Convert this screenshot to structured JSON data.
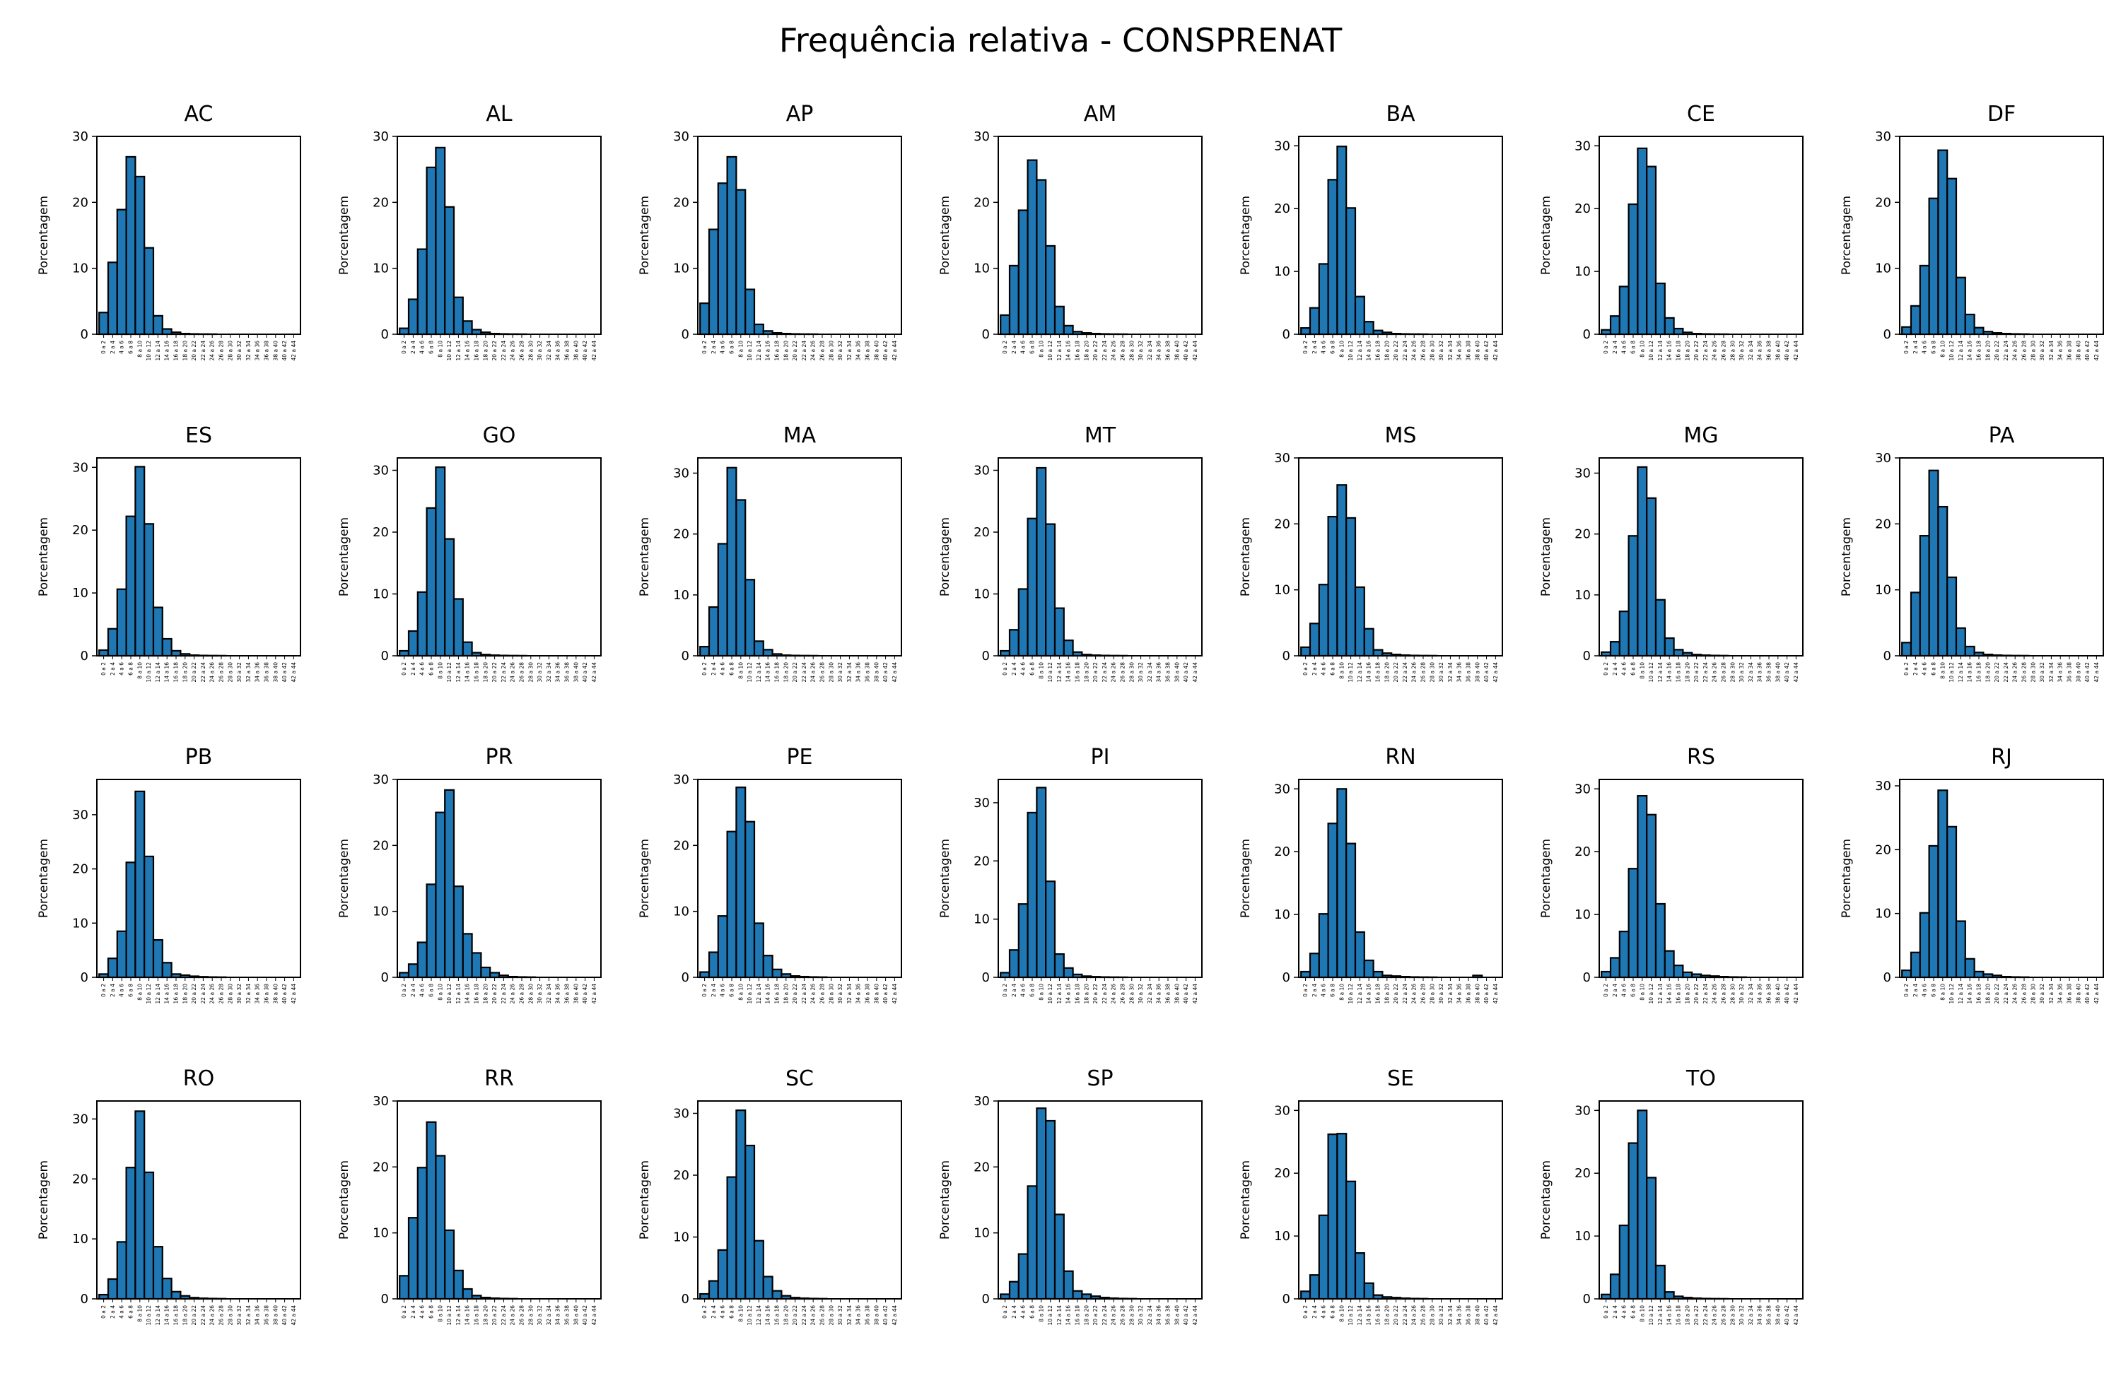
{
  "figure_title": "Frequência relativa - CONSPRENAT",
  "chart_data": {
    "type": "bar",
    "bin_labels": [
      "0 a 2",
      "2 a 4",
      "4 a 6",
      "6 a 8",
      "8 a 10",
      "10 a 12",
      "12 a 14",
      "14 a 16",
      "16 a 18",
      "18 a 20",
      "20 a 22",
      "22 a 24",
      "24 a 26",
      "26 a 28",
      "28 a 30",
      "30 a 32",
      "32 a 34",
      "34 a 36",
      "36 a 38",
      "38 a 40",
      "40 a 42",
      "42 a 44"
    ],
    "ylabel": "Porcentagem",
    "bar_color": "#1f77b4",
    "edge_color": "#000000",
    "grid": false,
    "panels": [
      {
        "title": "AC",
        "ylim": [
          0,
          30
        ],
        "yticks": [
          0,
          10,
          20,
          30
        ],
        "values": [
          3.3,
          10.9,
          18.9,
          26.9,
          23.9,
          13.1,
          2.8,
          0.8,
          0.3,
          0.1,
          0.05,
          0.03,
          0.02,
          0,
          0,
          0,
          0,
          0,
          0,
          0,
          0,
          0
        ]
      },
      {
        "title": "AL",
        "ylim": [
          0,
          30
        ],
        "yticks": [
          0,
          10,
          20,
          30
        ],
        "values": [
          0.9,
          5.3,
          12.9,
          25.3,
          28.3,
          19.3,
          5.6,
          2.0,
          0.7,
          0.3,
          0.1,
          0.05,
          0.03,
          0.02,
          0,
          0,
          0,
          0,
          0,
          0,
          0,
          0
        ]
      },
      {
        "title": "AP",
        "ylim": [
          0,
          30
        ],
        "yticks": [
          0,
          10,
          20,
          30
        ],
        "values": [
          4.7,
          15.9,
          22.9,
          26.9,
          21.9,
          6.8,
          1.5,
          0.5,
          0.2,
          0.1,
          0.05,
          0.03,
          0.02,
          0,
          0,
          0,
          0,
          0,
          0,
          0,
          0,
          0
        ]
      },
      {
        "title": "AM",
        "ylim": [
          0,
          30
        ],
        "yticks": [
          0,
          10,
          20,
          30
        ],
        "values": [
          2.9,
          10.4,
          18.8,
          26.4,
          23.4,
          13.4,
          4.2,
          1.3,
          0.4,
          0.2,
          0.1,
          0.05,
          0.03,
          0.02,
          0,
          0,
          0,
          0,
          0,
          0,
          0,
          0
        ]
      },
      {
        "title": "BA",
        "ylim": [
          0,
          31.5
        ],
        "yticks": [
          0,
          10,
          20,
          30
        ],
        "values": [
          1.0,
          4.2,
          11.2,
          24.6,
          29.9,
          20.1,
          6.0,
          2.0,
          0.6,
          0.3,
          0.1,
          0.05,
          0.03,
          0.02,
          0,
          0,
          0,
          0,
          0,
          0,
          0,
          0
        ]
      },
      {
        "title": "CE",
        "ylim": [
          0,
          31.5
        ],
        "yticks": [
          0,
          10,
          20,
          30
        ],
        "values": [
          0.7,
          2.9,
          7.6,
          20.7,
          29.6,
          26.7,
          8.1,
          2.6,
          0.9,
          0.3,
          0.1,
          0.05,
          0.03,
          0.02,
          0,
          0,
          0,
          0,
          0,
          0,
          0,
          0
        ]
      },
      {
        "title": "DF",
        "ylim": [
          0,
          30
        ],
        "yticks": [
          0,
          10,
          20,
          30
        ],
        "values": [
          1.1,
          4.3,
          10.4,
          20.6,
          27.9,
          23.6,
          8.6,
          3.0,
          1.0,
          0.4,
          0.2,
          0.1,
          0.05,
          0.03,
          0,
          0,
          0,
          0,
          0,
          0,
          0,
          0
        ]
      },
      {
        "title": "ES",
        "ylim": [
          0,
          31.5
        ],
        "yticks": [
          0,
          10,
          20,
          30
        ],
        "values": [
          0.9,
          4.3,
          10.6,
          22.2,
          30.1,
          21.0,
          7.7,
          2.7,
          0.8,
          0.3,
          0.1,
          0.05,
          0.03,
          0.02,
          0,
          0,
          0,
          0,
          0,
          0,
          0,
          0
        ]
      },
      {
        "title": "GO",
        "ylim": [
          0,
          32
        ],
        "yticks": [
          0,
          10,
          20,
          30
        ],
        "values": [
          0.8,
          4.0,
          10.3,
          23.9,
          30.5,
          18.9,
          9.2,
          2.2,
          0.5,
          0.2,
          0.1,
          0.05,
          0.03,
          0.02,
          0,
          0,
          0,
          0,
          0,
          0,
          0,
          0
        ]
      },
      {
        "title": "MA",
        "ylim": [
          0,
          32.5
        ],
        "yticks": [
          0,
          10,
          20,
          30
        ],
        "values": [
          1.5,
          8.0,
          18.4,
          30.9,
          25.6,
          12.5,
          2.4,
          1.0,
          0.3,
          0.1,
          0.05,
          0.03,
          0.02,
          0,
          0,
          0,
          0,
          0,
          0,
          0,
          0,
          0
        ]
      },
      {
        "title": "MT",
        "ylim": [
          0,
          32
        ],
        "yticks": [
          0,
          10,
          20,
          30
        ],
        "values": [
          0.8,
          4.2,
          10.8,
          22.2,
          30.4,
          21.3,
          7.7,
          2.5,
          0.6,
          0.2,
          0.1,
          0.05,
          0.03,
          0.02,
          0,
          0,
          0,
          0,
          0,
          0,
          0,
          0
        ]
      },
      {
        "title": "MS",
        "ylim": [
          0,
          30
        ],
        "yticks": [
          0,
          10,
          20,
          30
        ],
        "values": [
          1.3,
          4.9,
          10.8,
          21.1,
          25.9,
          20.9,
          10.4,
          4.1,
          0.9,
          0.4,
          0.2,
          0.1,
          0.05,
          0.03,
          0.02,
          0,
          0,
          0,
          0,
          0,
          0,
          0
        ]
      },
      {
        "title": "MG",
        "ylim": [
          0,
          32.5
        ],
        "yticks": [
          0,
          10,
          20,
          30
        ],
        "values": [
          0.6,
          2.3,
          7.3,
          19.7,
          31.0,
          25.9,
          9.2,
          2.9,
          1.0,
          0.5,
          0.2,
          0.1,
          0.05,
          0.03,
          0,
          0,
          0,
          0,
          0,
          0,
          0,
          0
        ]
      },
      {
        "title": "PA",
        "ylim": [
          0,
          30
        ],
        "yticks": [
          0,
          10,
          20,
          30
        ],
        "values": [
          2.0,
          9.6,
          18.2,
          28.1,
          22.6,
          11.9,
          4.2,
          1.4,
          0.5,
          0.2,
          0.1,
          0.05,
          0.03,
          0.02,
          0,
          0,
          0,
          0,
          0,
          0,
          0,
          0
        ]
      },
      {
        "title": "PB",
        "ylim": [
          0,
          36.5
        ],
        "yticks": [
          0,
          10,
          20,
          30
        ],
        "values": [
          0.6,
          3.5,
          8.5,
          21.2,
          34.3,
          22.3,
          6.9,
          2.7,
          0.6,
          0.4,
          0.2,
          0.1,
          0.05,
          0.03,
          0,
          0,
          0,
          0,
          0,
          0,
          0,
          0
        ]
      },
      {
        "title": "PR",
        "ylim": [
          0,
          30
        ],
        "yticks": [
          0,
          10,
          20,
          30
        ],
        "values": [
          0.7,
          2.0,
          5.3,
          14.1,
          25.0,
          28.4,
          13.8,
          6.6,
          3.7,
          1.5,
          0.7,
          0.3,
          0.1,
          0.05,
          0.03,
          0,
          0,
          0,
          0,
          0,
          0,
          0
        ]
      },
      {
        "title": "PE",
        "ylim": [
          0,
          30
        ],
        "yticks": [
          0,
          10,
          20,
          30
        ],
        "values": [
          0.8,
          3.8,
          9.3,
          22.1,
          28.8,
          23.6,
          8.2,
          3.3,
          1.2,
          0.5,
          0.2,
          0.1,
          0.05,
          0.03,
          0,
          0,
          0,
          0,
          0,
          0,
          0,
          0
        ]
      },
      {
        "title": "PI",
        "ylim": [
          0,
          34
        ],
        "yticks": [
          0,
          10,
          20,
          30
        ],
        "values": [
          0.8,
          4.7,
          12.6,
          28.3,
          32.6,
          16.5,
          4.0,
          1.6,
          0.5,
          0.2,
          0.1,
          0.05,
          0.03,
          0.02,
          0,
          0,
          0,
          0,
          0,
          0,
          0,
          0
        ]
      },
      {
        "title": "RN",
        "ylim": [
          0,
          31.5
        ],
        "yticks": [
          0,
          10,
          20,
          30
        ],
        "values": [
          0.9,
          3.8,
          10.1,
          24.5,
          30.0,
          21.3,
          7.2,
          2.7,
          0.9,
          0.3,
          0.2,
          0.1,
          0.05,
          0.03,
          0.02,
          0,
          0,
          0,
          0,
          0.3,
          0,
          0
        ]
      },
      {
        "title": "RS",
        "ylim": [
          0,
          31.5
        ],
        "yticks": [
          0,
          10,
          20,
          30
        ],
        "values": [
          0.9,
          3.1,
          7.3,
          17.3,
          28.9,
          25.9,
          11.7,
          4.2,
          1.9,
          0.8,
          0.5,
          0.3,
          0.2,
          0.1,
          0.05,
          0.03,
          0,
          0,
          0,
          0,
          0,
          0
        ]
      },
      {
        "title": "RJ",
        "ylim": [
          0,
          31
        ],
        "yticks": [
          0,
          10,
          20,
          30
        ],
        "values": [
          1.1,
          3.9,
          10.1,
          20.6,
          29.3,
          23.6,
          8.8,
          2.9,
          0.9,
          0.5,
          0.3,
          0.1,
          0.05,
          0.03,
          0,
          0,
          0,
          0,
          0,
          0,
          0,
          0
        ]
      },
      {
        "title": "RO",
        "ylim": [
          0,
          33
        ],
        "yticks": [
          0,
          10,
          20,
          30
        ],
        "values": [
          0.7,
          3.3,
          9.5,
          21.9,
          31.3,
          21.1,
          8.7,
          3.4,
          1.2,
          0.5,
          0.2,
          0.1,
          0.05,
          0.03,
          0,
          0,
          0,
          0,
          0,
          0,
          0,
          0
        ]
      },
      {
        "title": "RR",
        "ylim": [
          0,
          30
        ],
        "yticks": [
          0,
          10,
          20,
          30
        ],
        "values": [
          3.5,
          12.3,
          19.9,
          26.8,
          21.7,
          10.4,
          4.3,
          1.5,
          0.5,
          0.2,
          0.1,
          0.05,
          0.03,
          0,
          0,
          0,
          0,
          0,
          0,
          0,
          0,
          0
        ]
      },
      {
        "title": "SC",
        "ylim": [
          0,
          32
        ],
        "yticks": [
          0,
          10,
          20,
          30
        ],
        "values": [
          0.8,
          2.9,
          7.9,
          19.7,
          30.5,
          24.8,
          9.4,
          3.6,
          1.3,
          0.5,
          0.2,
          0.1,
          0.05,
          0.03,
          0,
          0,
          0,
          0,
          0,
          0,
          0,
          0
        ]
      },
      {
        "title": "SP",
        "ylim": [
          0,
          30
        ],
        "yticks": [
          0,
          10,
          20,
          30
        ],
        "values": [
          0.7,
          2.6,
          6.8,
          17.1,
          28.9,
          27.0,
          12.8,
          4.2,
          1.2,
          0.7,
          0.4,
          0.2,
          0.1,
          0.05,
          0.03,
          0,
          0,
          0,
          0,
          0,
          0,
          0
        ]
      },
      {
        "title": "SE",
        "ylim": [
          0,
          31.5
        ],
        "yticks": [
          0,
          10,
          20,
          30
        ],
        "values": [
          1.2,
          3.8,
          13.3,
          26.2,
          26.3,
          18.7,
          7.3,
          2.5,
          0.6,
          0.3,
          0.2,
          0.1,
          0.05,
          0.03,
          0,
          0,
          0,
          0,
          0,
          0,
          0,
          0
        ]
      },
      {
        "title": "TO",
        "ylim": [
          0,
          31.5
        ],
        "yticks": [
          0,
          10,
          20,
          30
        ],
        "values": [
          0.7,
          3.9,
          11.7,
          24.8,
          30.0,
          19.3,
          5.3,
          1.1,
          0.4,
          0.2,
          0.1,
          0.05,
          0.03,
          0.02,
          0,
          0,
          0,
          0,
          0,
          0,
          0,
          0
        ]
      }
    ]
  }
}
